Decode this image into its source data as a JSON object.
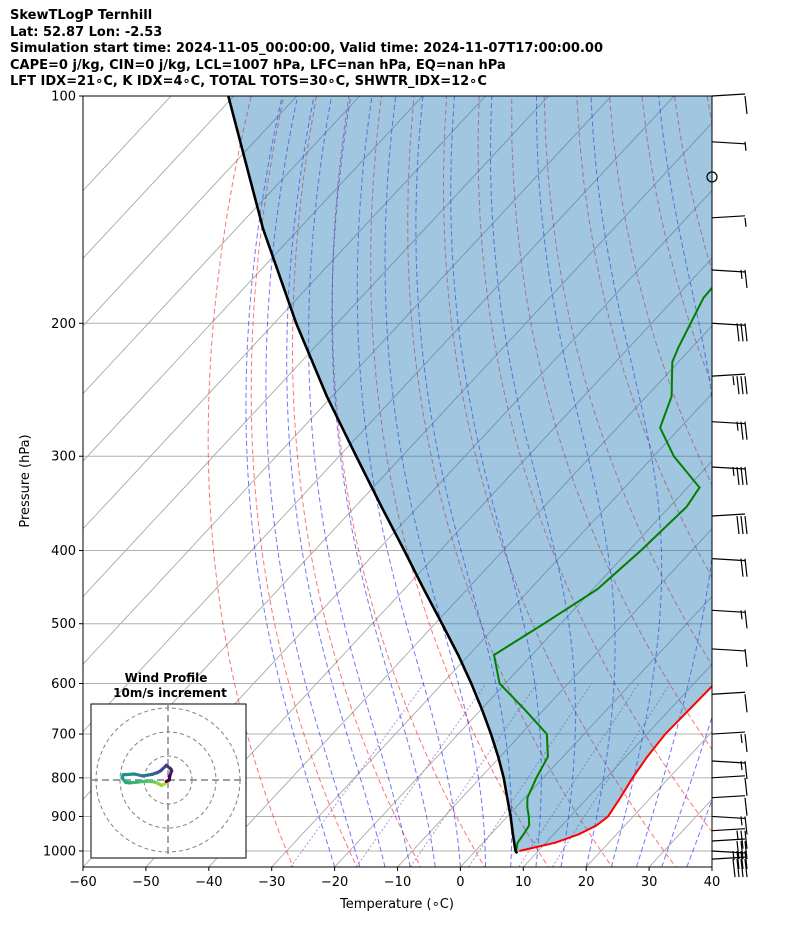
{
  "header": {
    "line1": "SkewTLogP Ternhill",
    "line2": "Lat: 52.87   Lon: -2.53",
    "line3": "Simulation start time: 2024-11-05_00:00:00, Valid time: 2024-11-07T17:00:00.00",
    "line4": "CAPE=0 j/kg, CIN=0 j/kg, LCL=1007 hPa, LFC=nan hPa, EQ=nan hPa",
    "line5": "LFT IDX=21∘C, K IDX=4∘C, TOTAL TOTS=30∘C, SHWTR_IDX=12∘C"
  },
  "colors": {
    "temperature": "#ff0000",
    "dewpoint": "#008000",
    "parcel": "#000000",
    "cape_shade": "#1f77b4",
    "dry_adiabat": "#ff0000",
    "moist_adiabat": "#0000ff",
    "mixing_ratio": "#9467bd",
    "isotherm": "#808080"
  },
  "chart_data": {
    "type": "line",
    "xlabel": "Temperature (∘C)",
    "ylabel": "Pressure (hPa)",
    "xlim": [
      -60,
      40
    ],
    "ylim": [
      1050,
      100
    ],
    "y_scale": "log",
    "x_ticks": [
      "−60",
      "−50",
      "−40",
      "−30",
      "−20",
      "−10",
      "0",
      "10",
      "20",
      "30",
      "40"
    ],
    "y_ticks": [
      "100",
      "200",
      "300",
      "400",
      "500",
      "600",
      "700",
      "800",
      "900",
      "1000"
    ],
    "grid": true,
    "series": [
      {
        "key": "temperature",
        "pressure": [
          1000,
          975,
          950,
          925,
          900,
          875,
          850,
          800,
          750,
          700,
          650,
          600,
          550,
          500,
          450,
          400,
          350,
          300,
          275,
          250,
          225,
          200,
          190,
          185,
          175,
          165,
          150,
          140,
          130,
          120,
          110,
          100
        ],
        "temp": [
          7,
          11.5,
          14,
          15.5,
          16,
          15.6,
          15.2,
          14.2,
          13.4,
          12.9,
          13.1,
          13.3,
          13.5,
          10.4,
          6.4,
          1.6,
          -3.1,
          -6.6,
          -10.3,
          -13.1,
          -15.8,
          -17,
          -17.5,
          -17.7,
          -15.2,
          -11.1,
          -3.8,
          0.5,
          4.4,
          7.1,
          10.1,
          11.8
        ]
      },
      {
        "key": "dewpoint",
        "pressure": [
          1000,
          975,
          950,
          925,
          900,
          875,
          850,
          800,
          750,
          700,
          650,
          600,
          550,
          500,
          450,
          400,
          350,
          330,
          300,
          275,
          250,
          225,
          215,
          200,
          185,
          175,
          160,
          150,
          140,
          130,
          120,
          110,
          100
        ],
        "temp": [
          6.5,
          5.5,
          5.2,
          4.8,
          3.4,
          1.8,
          0.4,
          -1.1,
          -2.4,
          -5.9,
          -13,
          -20.9,
          -26,
          -22.7,
          -19.3,
          -18.1,
          -17.3,
          -18.1,
          -26.8,
          -33.2,
          -36,
          -41,
          -42.2,
          -43.8,
          -45.5,
          -45.7,
          -39.8,
          -34.5,
          -32.4,
          -31.5,
          -27.2,
          -21.6,
          -13.7
        ]
      },
      {
        "key": "parcel",
        "pressure": [
          1007,
          1000,
          950,
          900,
          850,
          800,
          750,
          700,
          650,
          600,
          550,
          500,
          450,
          400,
          350,
          300,
          250,
          200,
          150,
          100
        ],
        "temp": [
          7,
          6.4,
          3.5,
          0.5,
          -2.8,
          -6.3,
          -10.3,
          -14.8,
          -19.8,
          -25.4,
          -31.7,
          -38.9,
          -46.9,
          -55.7,
          -65.8,
          -77.3,
          -90.8,
          -106.5,
          -125.7,
          -150.9
        ]
      }
    ],
    "wind_barbs": {
      "pressure": [
        100,
        115,
        128,
        145,
        170,
        200,
        235,
        270,
        310,
        360,
        410,
        480,
        540,
        620,
        700,
        760,
        800,
        850,
        900,
        940,
        970,
        1000,
        1025
      ],
      "speed_kt": [
        10,
        5,
        0,
        5,
        15,
        30,
        35,
        25,
        35,
        30,
        20,
        15,
        10,
        10,
        15,
        15,
        10,
        10,
        15,
        25,
        30,
        35,
        40
      ]
    },
    "hodograph": {
      "title": "Wind Profile",
      "subtitle": "10m/s increment",
      "rings": [
        10,
        20,
        30
      ],
      "u": [
        0.5,
        -1.4,
        -2.7,
        -3.5,
        -5.7,
        -9.3,
        -12.8,
        -16.1,
        -17.6,
        -19.1,
        -18.7,
        -14.1,
        -10.5,
        -6.5,
        -4.4,
        -3.1,
        -0.7,
        1.2,
        1.5,
        0.7,
        0.5,
        -0.7
      ],
      "v": [
        0,
        -1.6,
        -2.3,
        -1.8,
        -0.8,
        -0.5,
        -0.9,
        -1.2,
        -1,
        0.8,
        2.2,
        2.5,
        1.7,
        2.4,
        3.1,
        3.8,
        6.1,
        4.6,
        3.8,
        1.5,
        0,
        -0.6
      ]
    }
  }
}
